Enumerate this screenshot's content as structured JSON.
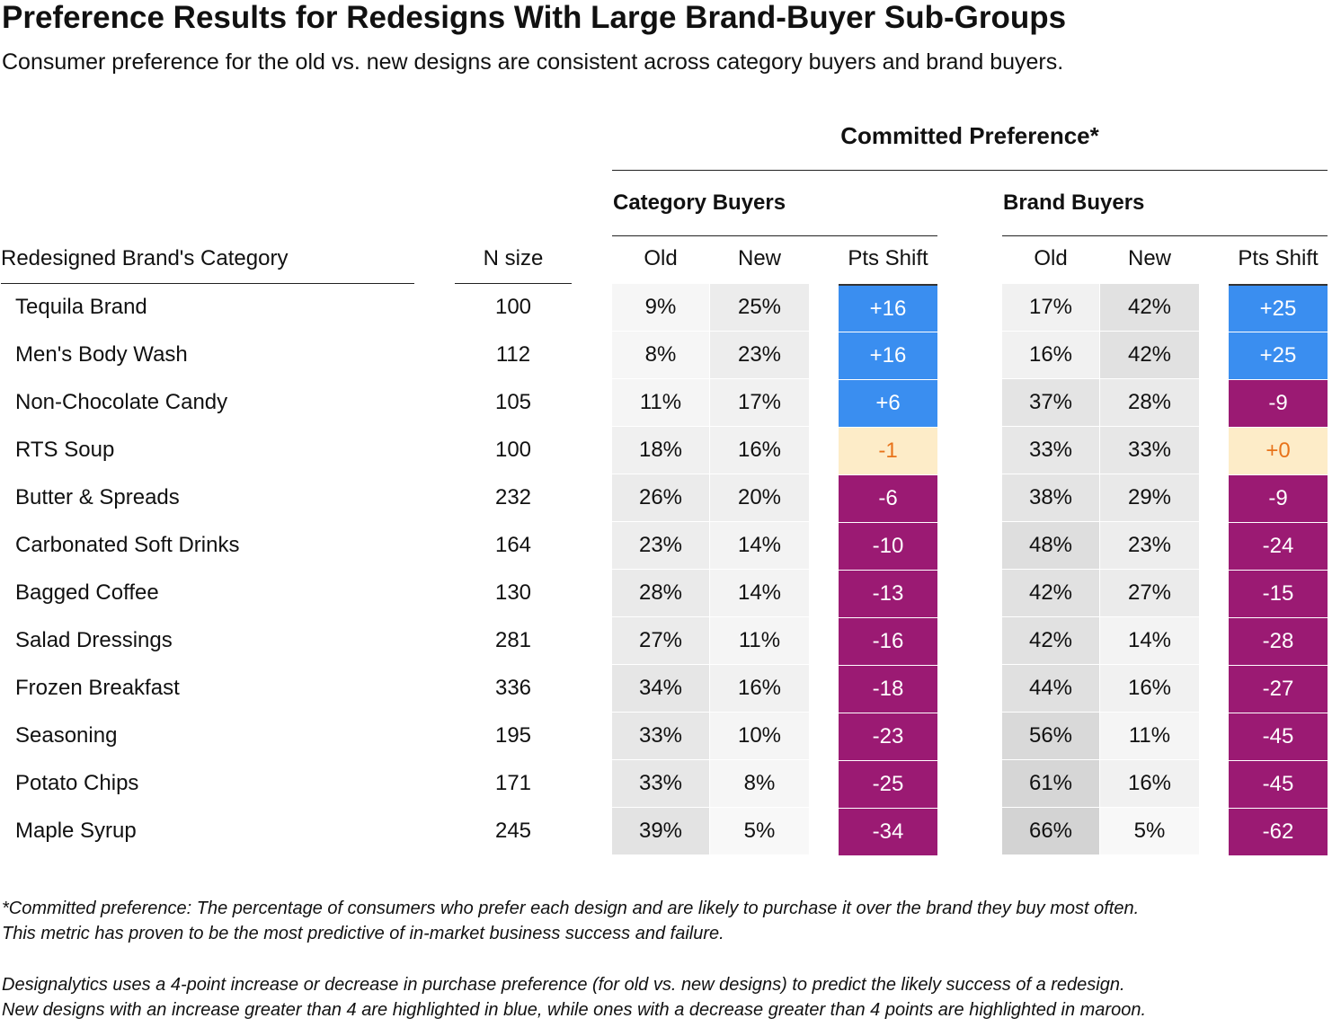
{
  "title": "Preference Results for Redesigns With Large Brand-Buyer Sub-Groups",
  "subtitle": "Consumer preference for the old vs. new designs are consistent across category buyers and brand buyers.",
  "group_header": "Committed Preference*",
  "subgroups": [
    "Category Buyers",
    "Brand Buyers"
  ],
  "columns": {
    "category": "Redesigned Brand's Category",
    "n": "N size",
    "old": "Old",
    "new": "New",
    "shift": "Pts Shift"
  },
  "colors": {
    "blue": "#3a8ef0",
    "maroon": "#9b1a73",
    "neutral": "#fdecc8",
    "neutral_text": "#e8731a"
  },
  "chart_data": {
    "type": "table",
    "rows": [
      {
        "category": "Tequila Brand",
        "n": "100",
        "cat_old": "9%",
        "cat_new": "25%",
        "cat_shift": "+16",
        "brand_old": "17%",
        "brand_new": "42%",
        "brand_shift": "+25"
      },
      {
        "category": "Men's Body Wash",
        "n": "112",
        "cat_old": "8%",
        "cat_new": "23%",
        "cat_shift": "+16",
        "brand_old": "16%",
        "brand_new": "42%",
        "brand_shift": "+25"
      },
      {
        "category": "Non-Chocolate Candy",
        "n": "105",
        "cat_old": "11%",
        "cat_new": "17%",
        "cat_shift": "+6",
        "brand_old": "37%",
        "brand_new": "28%",
        "brand_shift": "-9"
      },
      {
        "category": "RTS Soup",
        "n": "100",
        "cat_old": "18%",
        "cat_new": "16%",
        "cat_shift": "-1",
        "brand_old": "33%",
        "brand_new": "33%",
        "brand_shift": "+0"
      },
      {
        "category": "Butter & Spreads",
        "n": "232",
        "cat_old": "26%",
        "cat_new": "20%",
        "cat_shift": "-6",
        "brand_old": "38%",
        "brand_new": "29%",
        "brand_shift": "-9"
      },
      {
        "category": "Carbonated Soft Drinks",
        "n": "164",
        "cat_old": "23%",
        "cat_new": "14%",
        "cat_shift": "-10",
        "brand_old": "48%",
        "brand_new": "23%",
        "brand_shift": "-24"
      },
      {
        "category": "Bagged Coffee",
        "n": "130",
        "cat_old": "28%",
        "cat_new": "14%",
        "cat_shift": "-13",
        "brand_old": "42%",
        "brand_new": "27%",
        "brand_shift": "-15"
      },
      {
        "category": "Salad Dressings",
        "n": "281",
        "cat_old": "27%",
        "cat_new": "11%",
        "cat_shift": "-16",
        "brand_old": "42%",
        "brand_new": "14%",
        "brand_shift": "-28"
      },
      {
        "category": "Frozen Breakfast",
        "n": "336",
        "cat_old": "34%",
        "cat_new": "16%",
        "cat_shift": "-18",
        "brand_old": "44%",
        "brand_new": "16%",
        "brand_shift": "-27"
      },
      {
        "category": "Seasoning",
        "n": "195",
        "cat_old": "33%",
        "cat_new": "10%",
        "cat_shift": "-23",
        "brand_old": "56%",
        "brand_new": "11%",
        "brand_shift": "-45"
      },
      {
        "category": "Potato Chips",
        "n": "171",
        "cat_old": "33%",
        "cat_new": "8%",
        "cat_shift": "-25",
        "brand_old": "61%",
        "brand_new": "16%",
        "brand_shift": "-45"
      },
      {
        "category": "Maple Syrup",
        "n": "245",
        "cat_old": "39%",
        "cat_new": "5%",
        "cat_shift": "-34",
        "brand_old": "66%",
        "brand_new": "5%",
        "brand_shift": "-62"
      }
    ]
  },
  "footnotes": [
    "*Committed preference: The percentage of consumers who prefer each design and are likely to purchase it over the brand they buy most often.",
    "This metric has proven to be the most predictive of in-market business success and failure.",
    "Designalytics uses a 4-point increase or decrease in purchase preference (for old vs. new designs) to predict the likely success of a redesign.",
    "New designs with an increase greater than 4 are highlighted in blue, while ones with a decrease greater than 4 points are highlighted in maroon."
  ]
}
